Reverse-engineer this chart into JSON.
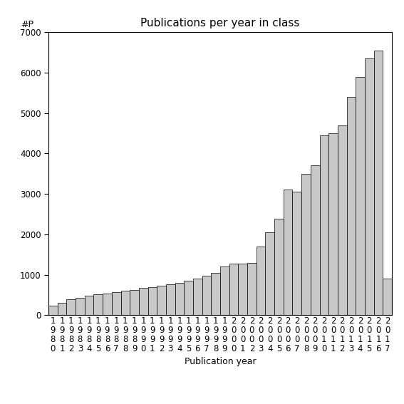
{
  "title": "Publications per year in class",
  "xlabel": "Publication year",
  "ylabel": "#P",
  "years": [
    1980,
    1981,
    1982,
    1983,
    1984,
    1985,
    1986,
    1987,
    1988,
    1989,
    1990,
    1991,
    1992,
    1993,
    1994,
    1995,
    1996,
    1997,
    1998,
    1999,
    2000,
    2001,
    2002,
    2003,
    2004,
    2005,
    2006,
    2007,
    2008,
    2009,
    2010,
    2011,
    2012,
    2013,
    2014,
    2015,
    2016,
    2017
  ],
  "values": [
    230,
    310,
    390,
    430,
    480,
    510,
    540,
    570,
    600,
    630,
    670,
    700,
    730,
    760,
    800,
    850,
    900,
    970,
    1050,
    1200,
    1270,
    1270,
    1300,
    1700,
    2050,
    2380,
    3100,
    3050,
    3500,
    3700,
    4450,
    4500,
    4700,
    5400,
    5900,
    6350,
    6550,
    900
  ],
  "bar_color": "#c8c8c8",
  "bar_edge_color": "#000000",
  "ylim": [
    0,
    7000
  ],
  "yticks": [
    0,
    1000,
    2000,
    3000,
    4000,
    5000,
    6000,
    7000
  ],
  "background_color": "#ffffff",
  "title_fontsize": 11,
  "label_fontsize": 9,
  "tick_fontsize": 8.5
}
